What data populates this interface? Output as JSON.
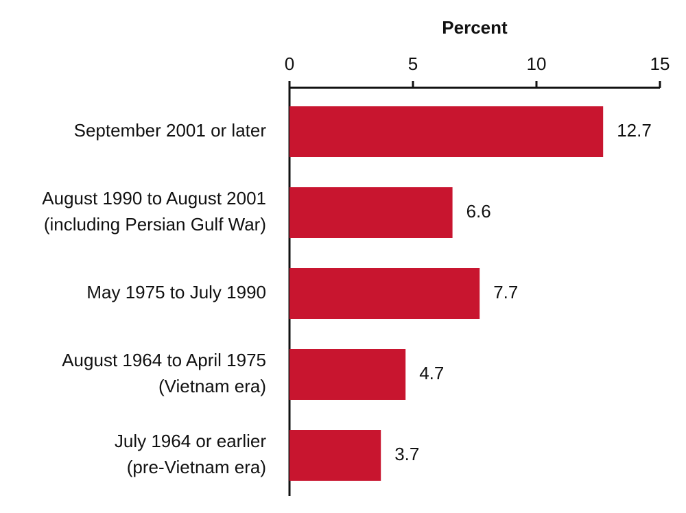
{
  "chart_data": {
    "type": "hbar",
    "title": "Percent",
    "categories": [
      [
        "September 2001 or later"
      ],
      [
        "August 1990 to August 2001",
        "(including Persian Gulf War)"
      ],
      [
        "May 1975 to July 1990"
      ],
      [
        "August 1964 to April 1975",
        "(Vietnam era)"
      ],
      [
        "July 1964 or earlier",
        "(pre-Vietnam era)"
      ]
    ],
    "values": [
      12.7,
      6.6,
      7.7,
      4.7,
      3.7
    ],
    "color": "#c8152f",
    "xlim": [
      0,
      15
    ],
    "xticks": [
      0,
      5,
      10,
      15
    ]
  }
}
